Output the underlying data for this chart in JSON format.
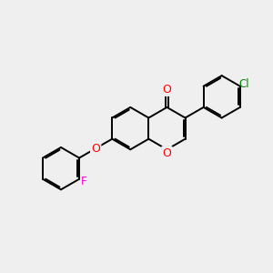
{
  "bg_color": "#efefef",
  "bond_color": "#000000",
  "bond_width": 1.4,
  "dbo": 0.055,
  "O_color": "#ff0000",
  "F_color": "#ff00cc",
  "Cl_color": "#008800",
  "font_size": 8.5,
  "bl": 0.78
}
